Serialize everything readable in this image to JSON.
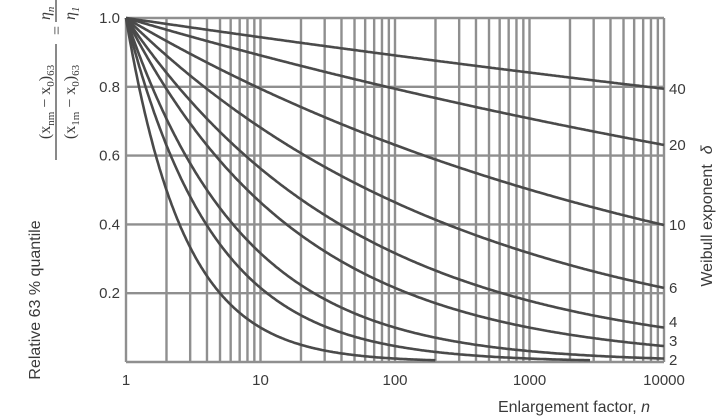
{
  "chart_data": {
    "type": "line",
    "x_scale": "log",
    "xlim": [
      1,
      10000
    ],
    "ylim": [
      0,
      1.0
    ],
    "grid": true,
    "xlabel_text": "Enlargement factor, ",
    "xlabel_var": "n",
    "ylabel_text": "Relative 63 % quantile",
    "ylabel_formula": {
      "num_paren": "(x",
      "num_sub1": "nm",
      "num_mid": " − x",
      "num_sub2": "0",
      "num_close": ")",
      "num_sub3": "63",
      "den_paren": "(x",
      "den_sub1": "1m",
      "den_mid": " − x",
      "den_sub2": "0",
      "den_close": ")",
      "den_sub3": "63",
      "equals": "=",
      "rhs_num": "η",
      "rhs_num_sub": "n",
      "rhs_den": "η",
      "rhs_den_sub": "1"
    },
    "right_axis_label": "Weibull exponent",
    "right_axis_symbol": "δ",
    "x_tick_labels": [
      "1",
      "10",
      "100",
      "1000",
      "10000"
    ],
    "y_tick_labels": [
      "0.2",
      "0.4",
      "0.6",
      "0.8",
      "1.0"
    ],
    "y_ticks": [
      0.2,
      0.4,
      0.6,
      0.8,
      1.0
    ],
    "series": [
      {
        "name": "40",
        "delta": 40
      },
      {
        "name": "20",
        "delta": 20
      },
      {
        "name": "10",
        "delta": 10
      },
      {
        "name": "6",
        "delta": 6
      },
      {
        "name": "4",
        "delta": 4
      },
      {
        "name": "3",
        "delta": 3
      },
      {
        "name": "2",
        "delta": 2
      },
      {
        "delta": 1.5
      },
      {
        "delta": 1
      }
    ],
    "formula": "y = n^(-1/delta)"
  }
}
